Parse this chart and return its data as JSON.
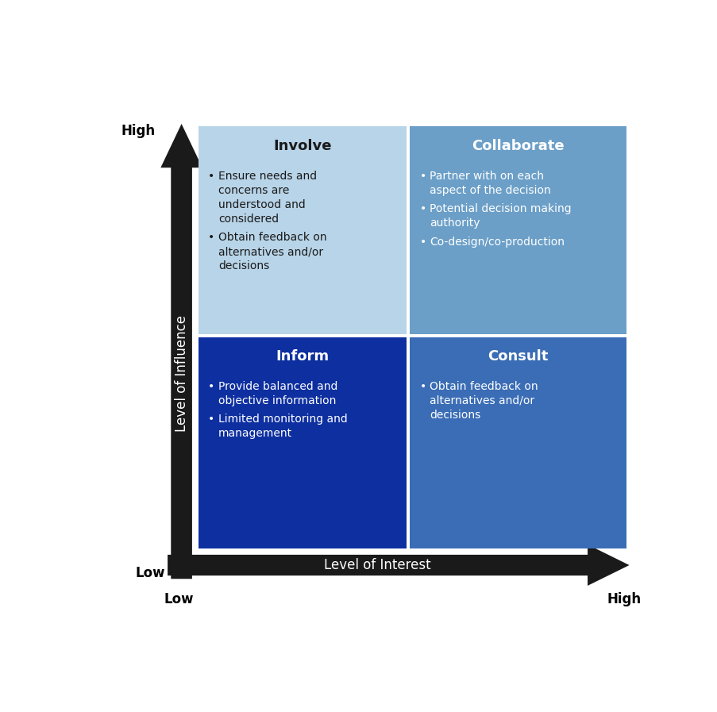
{
  "quadrants": [
    {
      "label": "Involve",
      "position": "top-left",
      "color": "#b8d4e8",
      "text_color": "#1a1a1a",
      "title_color": "#1a1a1a",
      "bullets": [
        "Ensure needs and\nconcerns are\nunderstood and\nconsidered",
        "Obtain feedback on\nalternatives and/or\ndecisions"
      ]
    },
    {
      "label": "Collaborate",
      "position": "top-right",
      "color": "#6b9fc8",
      "text_color": "#ffffff",
      "title_color": "#ffffff",
      "bullets": [
        "Partner with on each\naspect of the decision",
        "Potential decision making\nauthority",
        "Co-design/co-production"
      ]
    },
    {
      "label": "Inform",
      "position": "bottom-left",
      "color": "#0d2fa0",
      "text_color": "#ffffff",
      "title_color": "#ffffff",
      "bullets": [
        "Provide balanced and\nobjective information",
        "Limited monitoring and\nmanagement"
      ]
    },
    {
      "label": "Consult",
      "position": "bottom-right",
      "color": "#3a6db5",
      "text_color": "#ffffff",
      "title_color": "#ffffff",
      "bullets": [
        "Obtain feedback on\nalternatives and/or\ndecisions"
      ]
    }
  ],
  "x_axis_label": "Level of Interest",
  "y_axis_label": "Level of Influence",
  "x_low_label": "Low",
  "x_high_label": "High",
  "y_low_label": "Low",
  "y_high_label": "High",
  "background_color": "#ffffff",
  "arrow_color": "#1a1a1a",
  "arrow_label_color": "#ffffff"
}
